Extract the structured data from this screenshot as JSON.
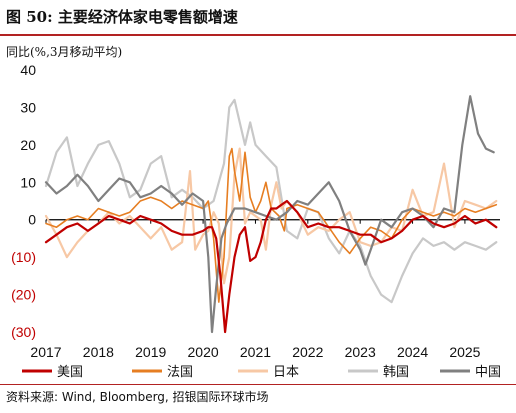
{
  "title": "图 50: 主要经济体家电零售额增速",
  "source": "资料来源: Wind, Bloomberg, 招银国际环球市场",
  "chart_data": {
    "type": "line",
    "ylabel": "同比(%,3月移动平均)",
    "ylim": [
      -30,
      40
    ],
    "yticks": [
      40,
      30,
      20,
      10,
      0,
      -10,
      -20,
      -30
    ],
    "ytick_labels": [
      "40",
      "30",
      "20",
      "10",
      "0",
      "(10)",
      "(20)",
      "(30)"
    ],
    "negative_label_color": "#c00000",
    "x_range": [
      2017.0,
      2025.67
    ],
    "xticks": [
      2017,
      2018,
      2019,
      2020,
      2021,
      2022,
      2023,
      2024,
      2025
    ],
    "legend_position": "bottom",
    "series": [
      {
        "name": "美国",
        "color": "#c00000",
        "width": 2.2,
        "x": [
          2017.0,
          2017.2,
          2017.4,
          2017.6,
          2017.8,
          2018.0,
          2018.2,
          2018.4,
          2018.6,
          2018.8,
          2019.0,
          2019.2,
          2019.4,
          2019.6,
          2019.8,
          2020.0,
          2020.1,
          2020.17,
          2020.25,
          2020.33,
          2020.42,
          2020.5,
          2020.6,
          2020.7,
          2020.8,
          2020.9,
          2021.0,
          2021.1,
          2021.2,
          2021.3,
          2021.4,
          2021.5,
          2021.6,
          2021.8,
          2022.0,
          2022.2,
          2022.4,
          2022.6,
          2022.8,
          2023.0,
          2023.2,
          2023.4,
          2023.6,
          2023.8,
          2024.0,
          2024.2,
          2024.4,
          2024.6,
          2024.8,
          2025.0,
          2025.2,
          2025.4,
          2025.6
        ],
        "values": [
          -6,
          -4,
          -2,
          -1,
          -3,
          -1,
          1,
          0,
          -1,
          1,
          0,
          -1,
          -3,
          -4,
          -4,
          -3,
          -2,
          -2,
          -5,
          -15,
          -31,
          -20,
          -10,
          -4,
          -2,
          -11,
          -10,
          -6,
          0,
          3,
          3,
          4,
          5,
          2,
          -2,
          -1,
          -2,
          -2,
          -3,
          -4,
          -4,
          -6,
          -5,
          -3,
          0,
          1,
          -1,
          -2,
          -1,
          1,
          -1,
          0,
          -2
        ]
      },
      {
        "name": "法国",
        "color": "#e67e22",
        "width": 1.6,
        "x": [
          2017.0,
          2017.2,
          2017.4,
          2017.6,
          2017.8,
          2018.0,
          2018.2,
          2018.4,
          2018.6,
          2018.8,
          2019.0,
          2019.2,
          2019.4,
          2019.6,
          2019.8,
          2020.0,
          2020.1,
          2020.2,
          2020.3,
          2020.4,
          2020.5,
          2020.55,
          2020.6,
          2020.7,
          2020.8,
          2020.9,
          2021.0,
          2021.1,
          2021.2,
          2021.3,
          2021.45,
          2021.55,
          2021.6,
          2021.8,
          2022.0,
          2022.2,
          2022.4,
          2022.6,
          2022.8,
          2023.0,
          2023.2,
          2023.4,
          2023.6,
          2023.8,
          2024.0,
          2024.2,
          2024.4,
          2024.6,
          2024.8,
          2025.0,
          2025.2,
          2025.4,
          2025.6
        ],
        "values": [
          -1,
          -2,
          0,
          1,
          0,
          3,
          2,
          1,
          2,
          5,
          6,
          5,
          3,
          5,
          4,
          3,
          5,
          -5,
          -22,
          -10,
          17,
          19,
          13,
          5,
          18,
          6,
          2,
          5,
          10,
          3,
          1,
          -3,
          3,
          4,
          3,
          2,
          -2,
          -6,
          -9,
          -5,
          -2,
          -3,
          -5,
          0,
          3,
          2,
          1,
          2,
          1,
          3,
          2,
          3,
          4
        ]
      },
      {
        "name": "日本",
        "color": "#f7c8a5",
        "width": 2.2,
        "x": [
          2017.0,
          2017.2,
          2017.4,
          2017.6,
          2017.8,
          2018.0,
          2018.2,
          2018.4,
          2018.6,
          2018.8,
          2019.0,
          2019.2,
          2019.4,
          2019.6,
          2019.75,
          2019.85,
          2020.0,
          2020.1,
          2020.2,
          2020.3,
          2020.4,
          2020.5,
          2020.6,
          2020.7,
          2020.8,
          2020.9,
          2021.0,
          2021.1,
          2021.2,
          2021.3,
          2021.4,
          2021.5,
          2021.6,
          2021.8,
          2022.0,
          2022.2,
          2022.4,
          2022.6,
          2022.8,
          2023.0,
          2023.2,
          2023.4,
          2023.6,
          2023.8,
          2024.0,
          2024.2,
          2024.4,
          2024.6,
          2024.8,
          2025.0,
          2025.2,
          2025.4,
          2025.6
        ],
        "values": [
          1,
          -4,
          -10,
          -6,
          -3,
          -1,
          2,
          -1,
          1,
          -2,
          -5,
          -2,
          -8,
          -6,
          13,
          -8,
          -4,
          -3,
          2,
          -1,
          -17,
          -10,
          12,
          19,
          -1,
          2,
          1,
          0,
          -8,
          4,
          10,
          3,
          5,
          2,
          -4,
          -2,
          -3,
          0,
          2,
          -6,
          -7,
          -6,
          -2,
          -3,
          8,
          1,
          2,
          15,
          -2,
          5,
          4,
          3,
          5
        ]
      },
      {
        "name": "韩国",
        "color": "#c8c8c8",
        "width": 2.2,
        "x": [
          2017.0,
          2017.2,
          2017.4,
          2017.6,
          2017.8,
          2018.0,
          2018.2,
          2018.4,
          2018.6,
          2018.8,
          2019.0,
          2019.2,
          2019.4,
          2019.6,
          2019.8,
          2020.0,
          2020.2,
          2020.4,
          2020.5,
          2020.6,
          2020.8,
          2020.9,
          2021.0,
          2021.2,
          2021.4,
          2021.6,
          2021.8,
          2022.0,
          2022.2,
          2022.4,
          2022.6,
          2022.8,
          2023.0,
          2023.2,
          2023.4,
          2023.6,
          2023.8,
          2024.0,
          2024.2,
          2024.4,
          2024.6,
          2024.8,
          2025.0,
          2025.2,
          2025.4,
          2025.6
        ],
        "values": [
          9,
          18,
          22,
          9,
          15,
          20,
          21,
          15,
          6,
          8,
          15,
          17,
          6,
          8,
          6,
          3,
          5,
          15,
          30,
          32,
          20,
          26,
          20,
          17,
          14,
          -3,
          -5,
          3,
          2,
          -5,
          -9,
          -3,
          -7,
          -15,
          -20,
          -22,
          -15,
          -9,
          -5,
          -7,
          -6,
          -8,
          -6,
          -7,
          -8,
          -6
        ]
      },
      {
        "name": "中国",
        "color": "#808080",
        "width": 2.2,
        "x": [
          2017.0,
          2017.2,
          2017.4,
          2017.6,
          2017.8,
          2018.0,
          2018.2,
          2018.4,
          2018.6,
          2018.8,
          2019.0,
          2019.2,
          2019.4,
          2019.6,
          2019.8,
          2020.0,
          2020.1,
          2020.17,
          2020.25,
          2020.35,
          2020.45,
          2020.6,
          2020.8,
          2021.0,
          2021.2,
          2021.4,
          2021.6,
          2021.8,
          2022.0,
          2022.2,
          2022.4,
          2022.6,
          2022.8,
          2023.0,
          2023.1,
          2023.2,
          2023.4,
          2023.6,
          2023.8,
          2024.0,
          2024.2,
          2024.4,
          2024.6,
          2024.8,
          2024.95,
          2025.1,
          2025.25,
          2025.4,
          2025.55
        ],
        "values": [
          10,
          7,
          9,
          12,
          9,
          5,
          8,
          11,
          10,
          6,
          7,
          9,
          7,
          4,
          7,
          5,
          -10,
          -30,
          -18,
          -5,
          -1,
          3,
          3,
          2,
          1,
          0,
          2,
          5,
          4,
          7,
          10,
          5,
          -3,
          -8,
          -12,
          -8,
          0,
          -2,
          2,
          3,
          1,
          -2,
          3,
          2,
          20,
          33,
          23,
          19,
          18
        ]
      }
    ]
  }
}
